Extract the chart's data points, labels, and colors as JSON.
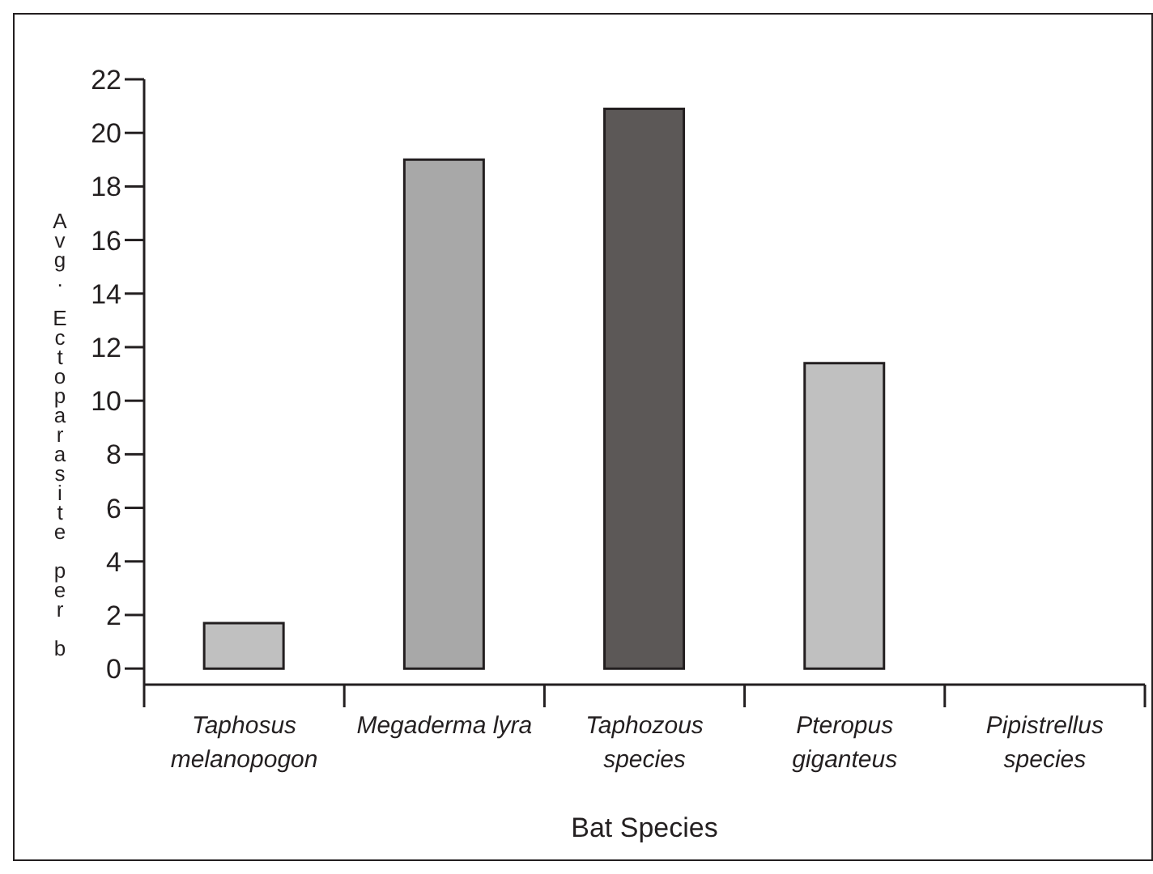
{
  "chart_data": {
    "type": "bar",
    "xlabel": "Bat Species",
    "ylabel": "Avg. Ectoparasite per b",
    "categories": [
      "Taphosus melanopogon",
      "Megaderma lyra",
      "Taphozous species",
      "Pteropus giganteus",
      "Pipistrellus species"
    ],
    "values": [
      1.7,
      19,
      20.9,
      11.4,
      0
    ],
    "colors": [
      "#c0c0c0",
      "#a8a8a8",
      "#5c5857",
      "#c0c0c0",
      "#c0c0c0"
    ],
    "ylim": [
      -0.6,
      22
    ],
    "yticks": [
      0,
      2,
      4,
      6,
      8,
      10,
      12,
      14,
      16,
      18,
      20,
      22
    ],
    "grid": false,
    "legend": false
  }
}
